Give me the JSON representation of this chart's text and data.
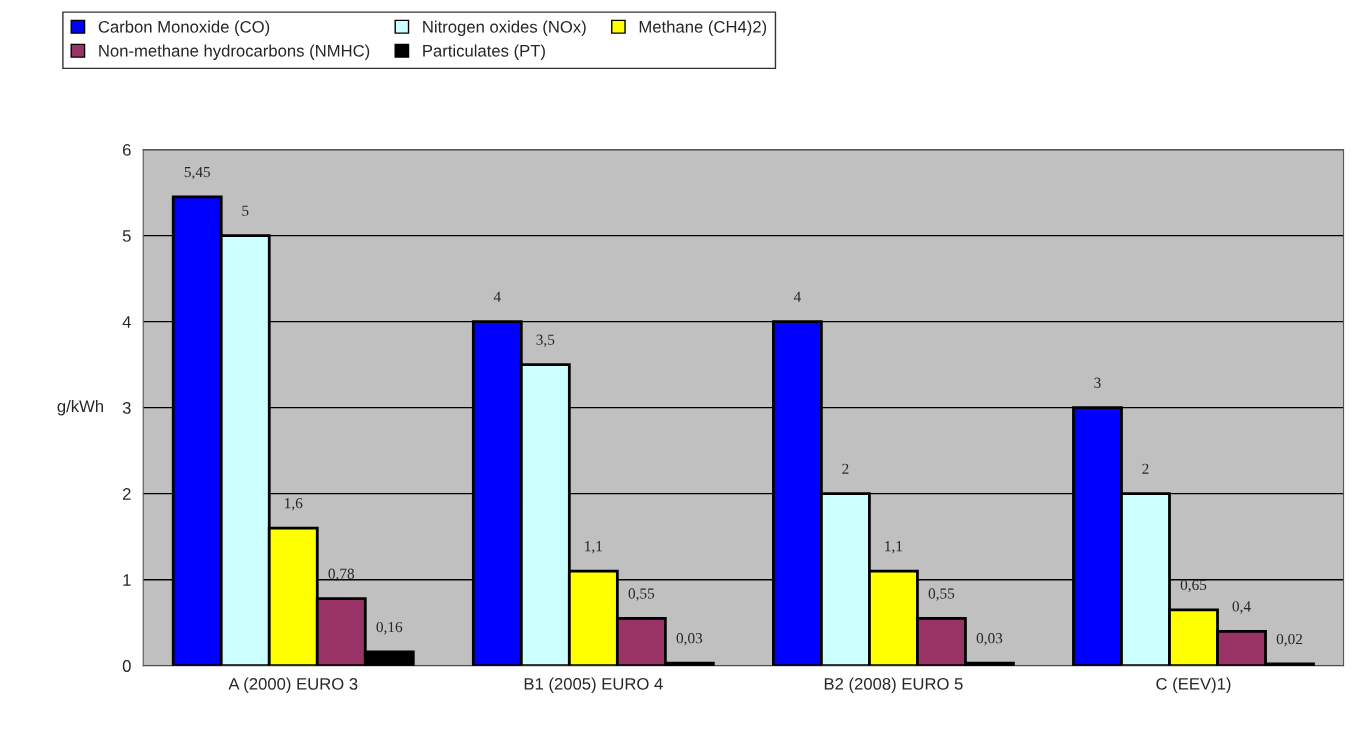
{
  "chart_data": {
    "type": "bar",
    "ylabel": "g/kWh",
    "categories": [
      "A (2000) EURO 3",
      "B1 (2005) EURO 4",
      "B2 (2008) EURO 5",
      "C (EEV)1)"
    ],
    "series": [
      {
        "name": "Carbon Monoxide (CO)",
        "color": "#0000ff",
        "values": [
          5.45,
          4,
          4,
          3
        ],
        "value_labels": [
          "5,45",
          "4",
          "4",
          "3"
        ]
      },
      {
        "name": "Nitrogen oxides (NOx)",
        "color": "#ccffff",
        "values": [
          5,
          3.5,
          2,
          2
        ],
        "value_labels": [
          "5",
          "3,5",
          "2",
          "2"
        ]
      },
      {
        "name": "Methane (CH4)2)",
        "color": "#ffff00",
        "values": [
          1.6,
          1.1,
          1.1,
          0.65
        ],
        "value_labels": [
          "1,6",
          "1,1",
          "1,1",
          "0,65"
        ]
      },
      {
        "name": "Non-methane hydrocarbons (NMHC)",
        "color": "#993366",
        "values": [
          0.78,
          0.55,
          0.55,
          0.4
        ],
        "value_labels": [
          "0,78",
          "0,55",
          "0,55",
          "0,4"
        ]
      },
      {
        "name": "Particulates (PT)",
        "color": "#000000",
        "values": [
          0.16,
          0.03,
          0.03,
          0.02
        ],
        "value_labels": [
          "0,16",
          "0,03",
          "0,03",
          "0,02"
        ]
      }
    ],
    "ylim": [
      0,
      6
    ],
    "yticks": [
      0,
      1,
      2,
      3,
      4,
      5,
      6
    ],
    "grid": "y",
    "legend": "top"
  }
}
